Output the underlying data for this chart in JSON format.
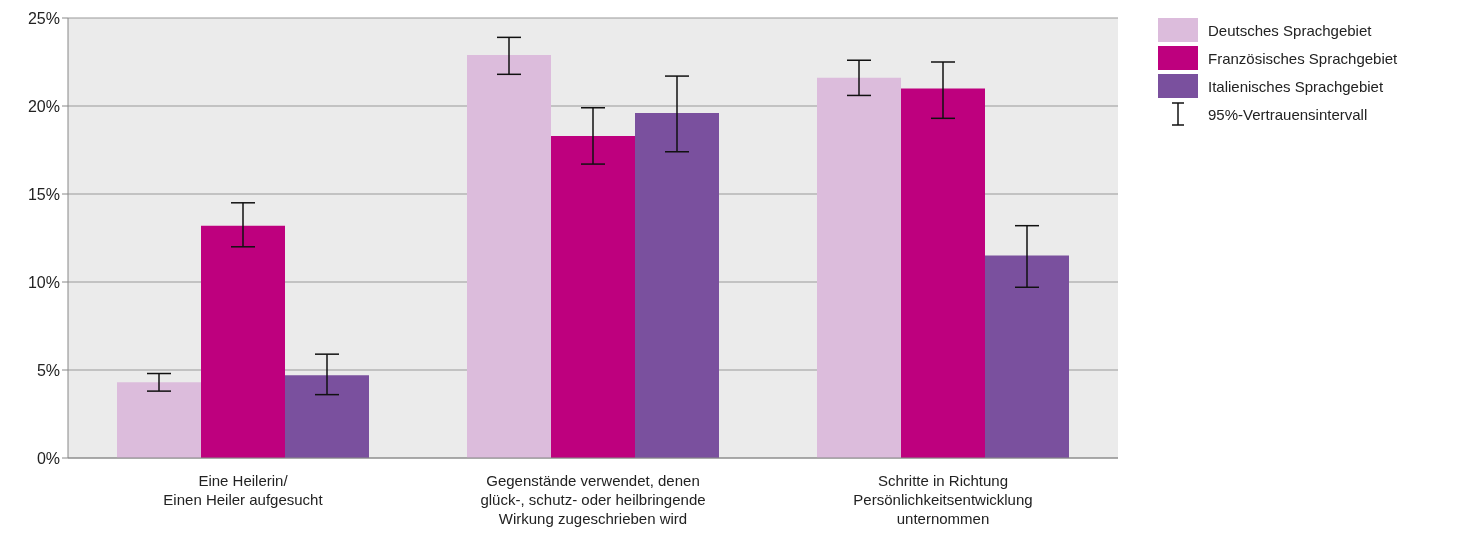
{
  "chart_data": {
    "type": "bar",
    "categories": [
      "Eine Heilerin/\nEinen Heiler aufgesucht",
      "Gegenstände verwendet, denen\nglück-, schutz- oder heilbringende\nWirkung zugeschrieben wird",
      "Schritte in Richtung\nPersönlichkeitsentwicklung\nunternommen"
    ],
    "series": [
      {
        "name": "Deutsches Sprachgebiet",
        "color": "#dcbcdc",
        "values": [
          4.3,
          22.9,
          21.6
        ],
        "errors": [
          [
            3.8,
            4.8
          ],
          [
            21.8,
            23.9
          ],
          [
            20.6,
            22.6
          ]
        ]
      },
      {
        "name": "Französisches Sprachgebiet",
        "color": "#be007e",
        "values": [
          13.2,
          18.3,
          21.0
        ],
        "errors": [
          [
            12.0,
            14.5
          ],
          [
            16.7,
            19.9
          ],
          [
            19.3,
            22.5
          ]
        ]
      },
      {
        "name": "Italienisches Sprachgebiet",
        "color": "#7a509e",
        "values": [
          4.7,
          19.6,
          11.5
        ],
        "errors": [
          [
            3.6,
            5.9
          ],
          [
            17.4,
            21.7
          ],
          [
            9.7,
            13.2
          ]
        ]
      }
    ],
    "ylim": [
      0,
      25
    ],
    "yticks": [
      {
        "value": 0,
        "label": "0%"
      },
      {
        "value": 5,
        "label": "5%"
      },
      {
        "value": 10,
        "label": "10%"
      },
      {
        "value": 15,
        "label": "15%"
      },
      {
        "value": 20,
        "label": "20%"
      },
      {
        "value": 25,
        "label": "25%"
      }
    ],
    "grid": "y",
    "legend": "right",
    "annotations": [
      "95%-Vertrauensintervall"
    ]
  }
}
